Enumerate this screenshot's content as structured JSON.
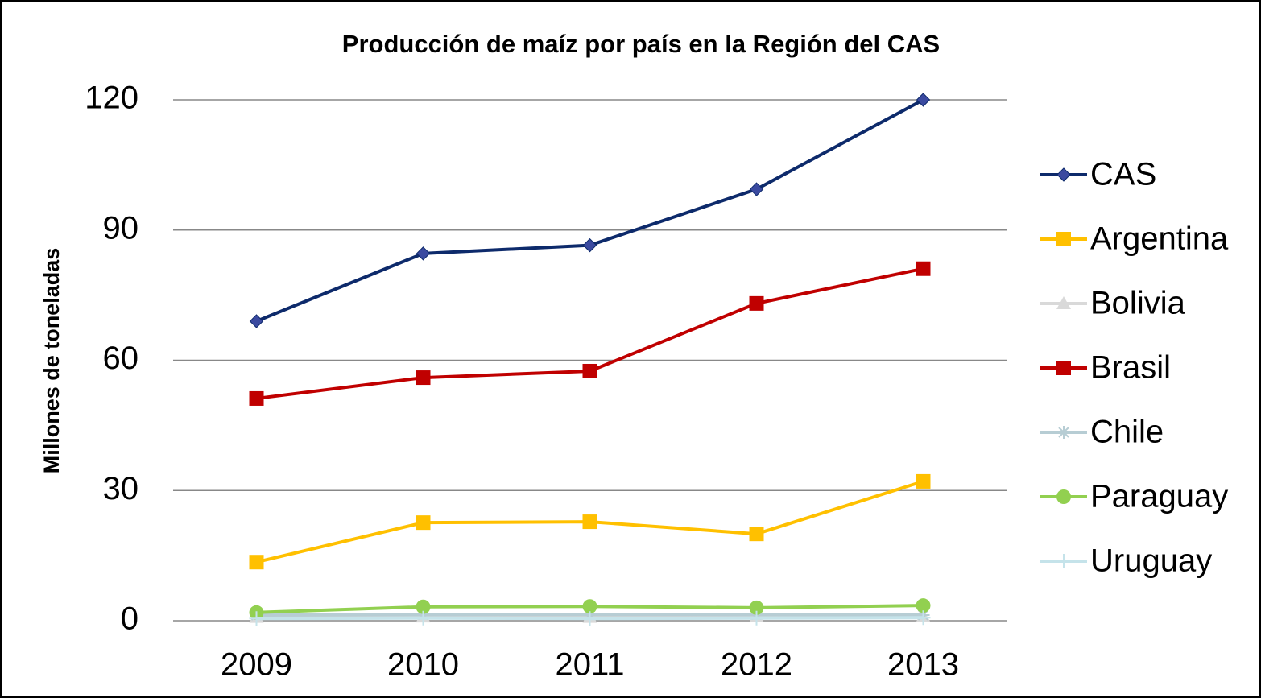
{
  "chart_data": {
    "type": "line",
    "title": "Producción de maíz por país en la Región del CAS",
    "ylabel": "Millones de toneladas",
    "categories": [
      "2009",
      "2010",
      "2011",
      "2012",
      "2013"
    ],
    "series": [
      {
        "name": "CAS",
        "color": "#0d2a6b",
        "marker_color": "#3b4aa0",
        "marker": "diamond",
        "values": [
          69.0,
          84.6,
          86.5,
          99.4,
          120
        ]
      },
      {
        "name": "Argentina",
        "color": "#ffc000",
        "marker_color": "#ffc000",
        "marker": "square",
        "values": [
          13.5,
          22.6,
          22.8,
          20.0,
          32.1
        ]
      },
      {
        "name": "Bolivia",
        "color": "#d9d9d9",
        "marker_color": "#d9d9d9",
        "marker": "triangle",
        "values": [
          0.8,
          0.9,
          0.8,
          1.0,
          1.0
        ]
      },
      {
        "name": "Brasil",
        "color": "#c00000",
        "marker_color": "#c00000",
        "marker": "square",
        "values": [
          51.2,
          56.0,
          57.5,
          73.1,
          81.1
        ]
      },
      {
        "name": "Chile",
        "color": "#b7cdd4",
        "marker_color": "#b7cdd4",
        "marker": "star",
        "values": [
          1.3,
          1.4,
          1.4,
          1.4,
          1.3
        ]
      },
      {
        "name": "Paraguay",
        "color": "#92d050",
        "marker_color": "#92d050",
        "marker": "circle",
        "values": [
          1.9,
          3.2,
          3.3,
          3.0,
          3.5
        ]
      },
      {
        "name": "Uruguay",
        "color": "#c5e3ea",
        "marker_color": "#c5e3ea",
        "marker": "plus",
        "values": [
          0.5,
          0.6,
          0.5,
          0.6,
          0.7
        ]
      }
    ],
    "ylim": [
      0,
      120
    ],
    "yticks": [
      0,
      30,
      60,
      90,
      120
    ],
    "grid": true,
    "legend": "right"
  }
}
